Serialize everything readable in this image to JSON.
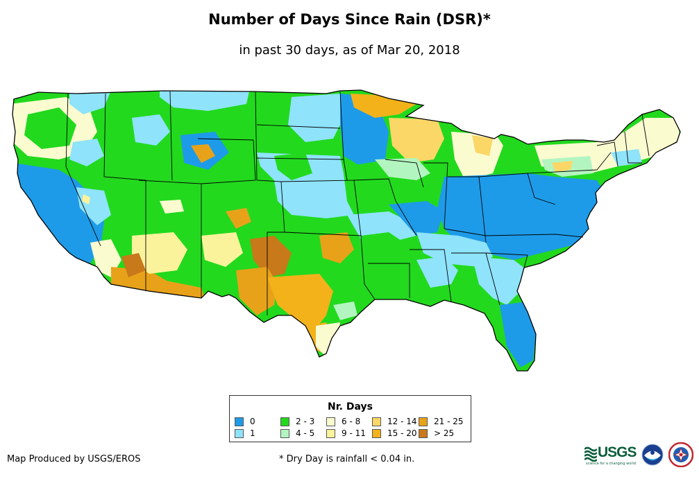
{
  "title": "Number of Days Since Rain (DSR)*",
  "subtitle": "in past 30 days, as of Mar 20, 2018",
  "legend": {
    "title": "Nr. Days",
    "items": [
      {
        "label": "0",
        "color": "#1e9be8"
      },
      {
        "label": "1",
        "color": "#8fe3fb"
      },
      {
        "label": "2 - 3",
        "color": "#22d91e"
      },
      {
        "label": "4 - 5",
        "color": "#b3f5c0"
      },
      {
        "label": "6 - 8",
        "color": "#fbfbd0"
      },
      {
        "label": "9 - 11",
        "color": "#fbf39c"
      },
      {
        "label": "12 - 14",
        "color": "#fbd767"
      },
      {
        "label": "15 - 20",
        "color": "#f3b21a"
      },
      {
        "label": "21 - 25",
        "color": "#e8a21a"
      },
      {
        "label": "> 25",
        "color": "#c8791a"
      }
    ]
  },
  "credit": "Map Produced by USGS/EROS",
  "footnote": "* Dry Day is rainfall < 0.04 in.",
  "logos": {
    "usgs": {
      "text": "USGS",
      "tagline": "science for a changing world",
      "icon": "usgs-logo-icon"
    },
    "noaa": {
      "icon": "noaa-logo-icon"
    },
    "nws": {
      "icon": "nws-logo-icon"
    }
  }
}
